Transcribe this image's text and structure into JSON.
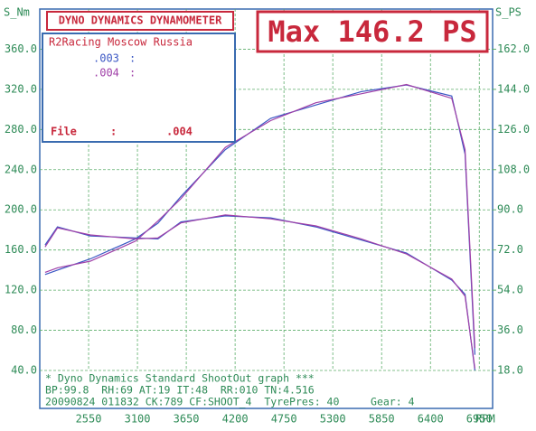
{
  "chart_data": {
    "type": "line",
    "title": "DYNO DYNAMICS DYNAMOMETER",
    "max_label": "Max 146.2 PS",
    "customer": "R2Racing Moscow Russia",
    "file_label": "File",
    "file_sep": ":",
    "file_value": ".004",
    "ylabel": "S_Nm",
    "y2label": "S_PS",
    "xlabel": "RPM",
    "footer": [
      "* Dyno Dynamics Standard ShootOut graph ***",
      "BP:99.8  RH:69 AT:19 IT:48  RR:010 TN:4.516",
      "20090824 011832 CK:789 CF:SHOOT_4  TyrePres: 40     Gear: 4"
    ],
    "x": [
      2060,
      2200,
      2570,
      3080,
      3330,
      3590,
      4090,
      4600,
      5110,
      5620,
      6130,
      6640,
      6790,
      6900
    ],
    "series": [
      {
        "name": ".003",
        "color": "#3b57c4",
        "values": [
          165,
          183,
          174,
          172,
          171,
          188,
          194,
          192,
          183,
          170,
          157,
          130,
          116,
          40
        ],
        "y2_values": [
          61,
          63,
          68,
          77,
          84,
          96,
          117,
          131,
          137,
          143,
          146,
          141,
          115,
          25
        ]
      },
      {
        "name": ".004",
        "color": "#a040a8",
        "values": [
          163,
          182,
          175,
          171,
          172,
          187,
          195,
          191,
          184,
          171,
          156,
          131,
          114,
          42
        ],
        "y2_values": [
          62,
          64,
          67,
          76,
          85,
          95,
          118,
          130,
          138,
          142,
          146.2,
          140,
          117,
          28
        ]
      }
    ],
    "xlim": [
      2000,
      7100
    ],
    "xticks": [
      2550,
      3100,
      3650,
      4200,
      4750,
      5300,
      5850,
      6400,
      6950
    ],
    "ylim": [
      40,
      400
    ],
    "yticks": [
      {
        "value": 40,
        "label": "40.0"
      },
      {
        "value": 80,
        "label": "80.0"
      },
      {
        "value": 120,
        "label": "120.0"
      },
      {
        "value": 160,
        "label": "160.0"
      },
      {
        "value": 200,
        "label": "200.0"
      },
      {
        "value": 240,
        "label": "240.0"
      },
      {
        "value": 280,
        "label": "280.0"
      },
      {
        "value": 320,
        "label": "320.0"
      },
      {
        "value": 360,
        "label": "360.0"
      }
    ],
    "y2lim": [
      18,
      180
    ],
    "y2ticks": [
      {
        "value": 18,
        "label": "18.0"
      },
      {
        "value": 36,
        "label": "36.0"
      },
      {
        "value": 54,
        "label": "54.0"
      },
      {
        "value": 72,
        "label": "72.0"
      },
      {
        "value": 90,
        "label": "90.0"
      },
      {
        "value": 108,
        "label": "108.0"
      },
      {
        "value": 126,
        "label": "126.0"
      },
      {
        "value": 144,
        "label": "144.0"
      },
      {
        "value": 162,
        "label": "162.0"
      }
    ],
    "grid": true
  }
}
